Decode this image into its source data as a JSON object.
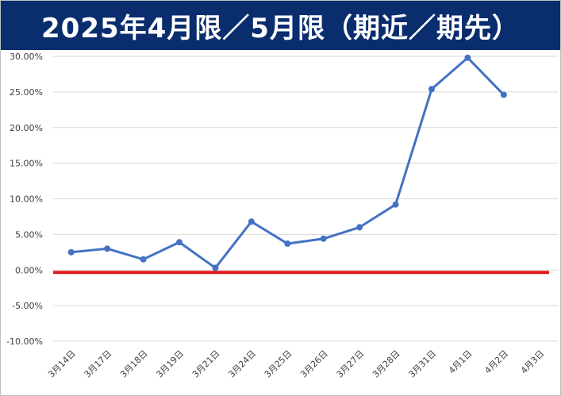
{
  "chart_data": {
    "type": "line",
    "title": "2025年4月限／5月限（期近／期先）",
    "categories": [
      "3月14日",
      "3月17日",
      "3月18日",
      "3月19日",
      "3月21日",
      "3月24日",
      "3月25日",
      "3月26日",
      "3月27日",
      "3月28日",
      "3月31日",
      "4月1日",
      "4月2日",
      "4月3日"
    ],
    "series": [
      {
        "values": [
          2.5,
          3.0,
          1.5,
          3.9,
          0.3,
          6.8,
          3.7,
          4.4,
          6.0,
          9.2,
          25.4,
          29.8,
          24.6,
          null
        ],
        "color": "#4472c4"
      }
    ],
    "reference_line": {
      "value": 0.0,
      "color": "#e31a1c"
    },
    "y_ticks": [
      "30.00%",
      "25.00%",
      "20.00%",
      "15.00%",
      "10.00%",
      "5.00%",
      "0.00%",
      "-5.00%",
      "-10.00%"
    ],
    "ylim": [
      -10,
      30
    ],
    "y_unit": "%",
    "grid": true,
    "xlabel": "",
    "ylabel": ""
  }
}
